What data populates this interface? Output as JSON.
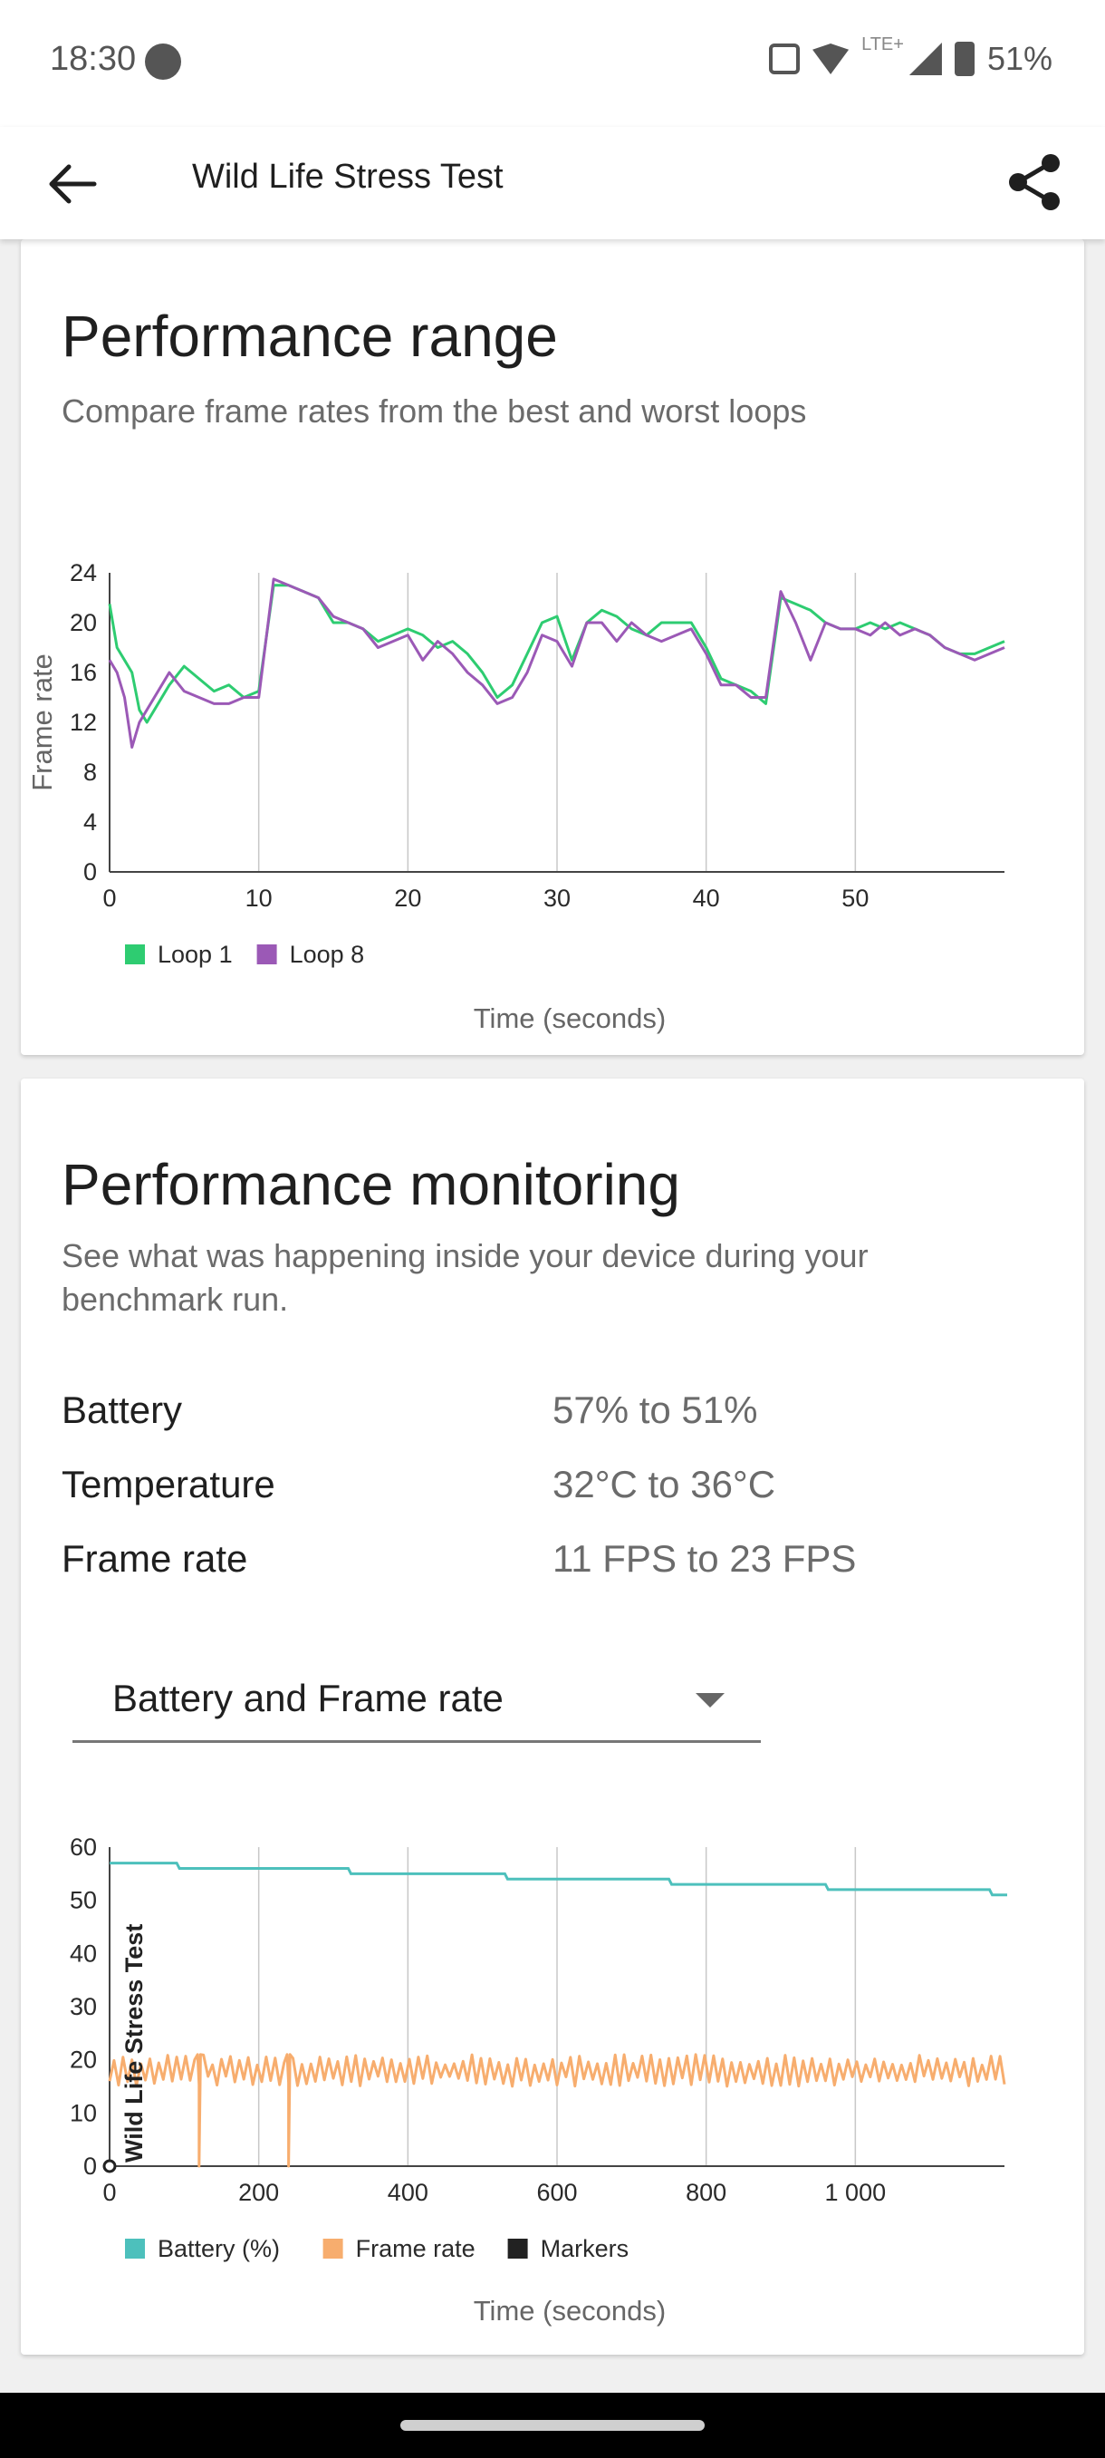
{
  "status_bar": {
    "time": "18:30",
    "network": "LTE+",
    "battery": "51%"
  },
  "app_bar": {
    "title": "Wild Life Stress Test",
    "back_icon": "arrow-left-icon",
    "share_icon": "share-icon"
  },
  "performance_range": {
    "title": "Performance range",
    "subtitle": "Compare frame rates from the best and worst loops"
  },
  "performance_monitoring": {
    "title": "Performance monitoring",
    "subtitle": "See what was happening inside your device during your benchmark run.",
    "stats": [
      {
        "label": "Battery",
        "value": "57% to 51%"
      },
      {
        "label": "Temperature",
        "value": "32°C to 36°C"
      },
      {
        "label": "Frame rate",
        "value": "11 FPS to 23 FPS"
      }
    ],
    "dropdown": {
      "selected": "Battery and Frame rate"
    }
  },
  "chart_data": [
    {
      "type": "line",
      "ylabel": "Frame rate",
      "xlabel": "Time (seconds)",
      "xlim": [
        0,
        60
      ],
      "ylim": [
        0,
        24
      ],
      "x_ticks": [
        "0",
        "10",
        "20",
        "30",
        "40",
        "50"
      ],
      "y_ticks": [
        "0",
        "4",
        "8",
        "12",
        "16",
        "20",
        "24"
      ],
      "legend_position": "bottom-left",
      "grid": "vertical",
      "series": [
        {
          "name": "Loop 1",
          "color": "#2ecc71",
          "points": [
            [
              0,
              21.5
            ],
            [
              0.5,
              18
            ],
            [
              1,
              17
            ],
            [
              1.5,
              16
            ],
            [
              2,
              13
            ],
            [
              2.5,
              12
            ],
            [
              3,
              13
            ],
            [
              4,
              15
            ],
            [
              5,
              16.5
            ],
            [
              6,
              15.5
            ],
            [
              7,
              14.5
            ],
            [
              8,
              15
            ],
            [
              9,
              14
            ],
            [
              10,
              14.5
            ],
            [
              11,
              23
            ],
            [
              12,
              23
            ],
            [
              13,
              22.5
            ],
            [
              14,
              22
            ],
            [
              15,
              20
            ],
            [
              16,
              20
            ],
            [
              17,
              19.5
            ],
            [
              18,
              18.5
            ],
            [
              19,
              19
            ],
            [
              20,
              19.5
            ],
            [
              21,
              19
            ],
            [
              22,
              18
            ],
            [
              23,
              18.5
            ],
            [
              24,
              17.5
            ],
            [
              25,
              16
            ],
            [
              26,
              14
            ],
            [
              27,
              15
            ],
            [
              28,
              17.5
            ],
            [
              29,
              20
            ],
            [
              30,
              20.5
            ],
            [
              31,
              17
            ],
            [
              32,
              20
            ],
            [
              33,
              21
            ],
            [
              34,
              20.5
            ],
            [
              35,
              19.5
            ],
            [
              36,
              19
            ],
            [
              37,
              20
            ],
            [
              38,
              20
            ],
            [
              39,
              20
            ],
            [
              40,
              18
            ],
            [
              41,
              15.5
            ],
            [
              42,
              15
            ],
            [
              43,
              14.5
            ],
            [
              44,
              13.5
            ],
            [
              45,
              22
            ],
            [
              46,
              21.5
            ],
            [
              47,
              21
            ],
            [
              48,
              20
            ],
            [
              49,
              19.5
            ],
            [
              50,
              19.5
            ],
            [
              51,
              20
            ],
            [
              52,
              19.5
            ],
            [
              53,
              20
            ],
            [
              54,
              19.5
            ],
            [
              55,
              19
            ],
            [
              56,
              18
            ],
            [
              57,
              17.5
            ],
            [
              58,
              17.5
            ],
            [
              59,
              18
            ],
            [
              60,
              18.5
            ]
          ]
        },
        {
          "name": "Loop 8",
          "color": "#9b59b6",
          "points": [
            [
              0,
              17
            ],
            [
              0.5,
              16
            ],
            [
              1,
              14
            ],
            [
              1.5,
              10
            ],
            [
              2,
              12
            ],
            [
              3,
              14
            ],
            [
              4,
              16
            ],
            [
              5,
              14.5
            ],
            [
              6,
              14
            ],
            [
              7,
              13.5
            ],
            [
              8,
              13.5
            ],
            [
              9,
              14
            ],
            [
              10,
              14
            ],
            [
              11,
              23.5
            ],
            [
              12,
              23
            ],
            [
              13,
              22.5
            ],
            [
              14,
              22
            ],
            [
              15,
              20.5
            ],
            [
              16,
              20
            ],
            [
              17,
              19.5
            ],
            [
              18,
              18
            ],
            [
              19,
              18.5
            ],
            [
              20,
              19
            ],
            [
              21,
              17
            ],
            [
              22,
              18.5
            ],
            [
              23,
              17.5
            ],
            [
              24,
              16
            ],
            [
              25,
              15
            ],
            [
              26,
              13.5
            ],
            [
              27,
              14
            ],
            [
              28,
              16
            ],
            [
              29,
              19
            ],
            [
              30,
              18.5
            ],
            [
              31,
              16.5
            ],
            [
              32,
              20
            ],
            [
              33,
              20
            ],
            [
              34,
              18.5
            ],
            [
              35,
              20
            ],
            [
              36,
              19
            ],
            [
              37,
              18.5
            ],
            [
              38,
              19
            ],
            [
              39,
              19.5
            ],
            [
              40,
              17.5
            ],
            [
              41,
              15
            ],
            [
              42,
              15
            ],
            [
              43,
              14
            ],
            [
              44,
              14
            ],
            [
              45,
              22.5
            ],
            [
              46,
              20
            ],
            [
              47,
              17
            ],
            [
              48,
              20
            ],
            [
              49,
              19.5
            ],
            [
              50,
              19.5
            ],
            [
              51,
              19
            ],
            [
              52,
              20
            ],
            [
              53,
              19
            ],
            [
              54,
              19.5
            ],
            [
              55,
              19
            ],
            [
              56,
              18
            ],
            [
              57,
              17.5
            ],
            [
              58,
              17
            ],
            [
              59,
              17.5
            ],
            [
              60,
              18
            ]
          ]
        }
      ]
    },
    {
      "type": "line",
      "xlabel": "Time (seconds)",
      "xlim": [
        0,
        1200
      ],
      "ylim": [
        0,
        60
      ],
      "x_ticks": [
        "0",
        "200",
        "400",
        "600",
        "800",
        "1 000"
      ],
      "y_ticks": [
        "0",
        "10",
        "20",
        "30",
        "40",
        "50",
        "60"
      ],
      "legend_position": "bottom-left",
      "grid": "vertical",
      "marker_label": "Wild Life Stress Test",
      "series": [
        {
          "name": "Battery (%)",
          "color": "#4dc0bc",
          "steps": [
            [
              0,
              57
            ],
            [
              90,
              56
            ],
            [
              320,
              55
            ],
            [
              530,
              54
            ],
            [
              750,
              53
            ],
            [
              960,
              52
            ],
            [
              1180,
              51
            ],
            [
              1200,
              51
            ]
          ]
        },
        {
          "name": "Frame rate",
          "color": "#f7ad6e",
          "base_range": [
            15,
            21
          ],
          "dips": [
            [
              120,
              0
            ],
            [
              240,
              0
            ]
          ],
          "range": [
            11,
            23
          ]
        },
        {
          "name": "Markers",
          "color": "#222222"
        }
      ]
    }
  ]
}
